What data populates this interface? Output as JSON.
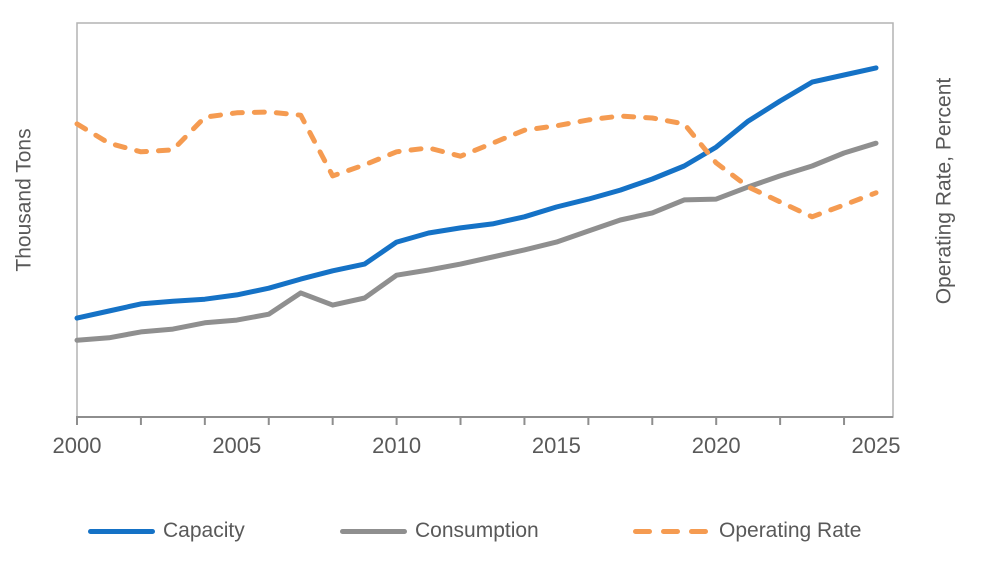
{
  "chart_data": {
    "type": "line",
    "title": "",
    "x": [
      2000,
      2001,
      2002,
      2003,
      2004,
      2005,
      2006,
      2007,
      2008,
      2009,
      2010,
      2011,
      2012,
      2013,
      2014,
      2015,
      2016,
      2017,
      2018,
      2019,
      2020,
      2021,
      2022,
      2023,
      2024,
      2025
    ],
    "x_tick_years": [
      2000,
      2002,
      2004,
      2006,
      2008,
      2010,
      2012,
      2014,
      2016,
      2018,
      2020,
      2022,
      2024
    ],
    "x_label_years": [
      2000,
      2005,
      2010,
      2015,
      2020,
      2025
    ],
    "xlim": [
      2000,
      2025
    ],
    "left_axis": {
      "title": "Thousand Tons",
      "numeric_labels_visible": false
    },
    "right_axis": {
      "title": "Operating Rate, Percent",
      "numeric_labels_visible": false
    },
    "ylim": [
      0,
      100
    ],
    "value_scale_note": "y axes show no numeric labels in source; values are estimated as percent of plot height from baseline",
    "grid": "off",
    "legend_position": "bottom",
    "series": [
      {
        "name": "Capacity",
        "axis": "left",
        "style": "solid",
        "color": "#1572C6",
        "values": [
          25.1,
          26.9,
          28.7,
          29.4,
          29.9,
          31.0,
          32.7,
          35.0,
          37.1,
          38.8,
          44.4,
          46.7,
          48.0,
          49.0,
          50.8,
          53.3,
          55.3,
          57.6,
          60.4,
          63.7,
          68.5,
          75.1,
          80.2,
          85.0,
          86.8,
          88.6
        ]
      },
      {
        "name": "Consumption",
        "axis": "left",
        "style": "solid",
        "color": "#8F8F8F",
        "values": [
          19.5,
          20.1,
          21.6,
          22.3,
          23.9,
          24.6,
          26.1,
          31.5,
          28.4,
          30.2,
          36.0,
          37.3,
          38.8,
          40.6,
          42.4,
          44.4,
          47.2,
          50.0,
          51.8,
          55.1,
          55.3,
          58.4,
          61.2,
          63.7,
          67.0,
          69.5
        ]
      },
      {
        "name": "Operating Rate",
        "axis": "right",
        "style": "dashed",
        "color": "#F59B51",
        "values": [
          74.4,
          69.5,
          67.3,
          67.8,
          76.1,
          77.2,
          77.4,
          76.6,
          61.2,
          64.0,
          67.3,
          68.3,
          66.2,
          69.5,
          72.8,
          73.9,
          75.4,
          76.4,
          75.9,
          74.4,
          64.5,
          58.4,
          54.6,
          50.8,
          53.8,
          56.9
        ]
      }
    ]
  },
  "colors": {
    "background": "#FFFFFF",
    "plot_border": "#B3B3B3",
    "axis_baseline": "#8E8E8E",
    "tick_mark": "#8E8E8E",
    "label_text": "#595959"
  }
}
